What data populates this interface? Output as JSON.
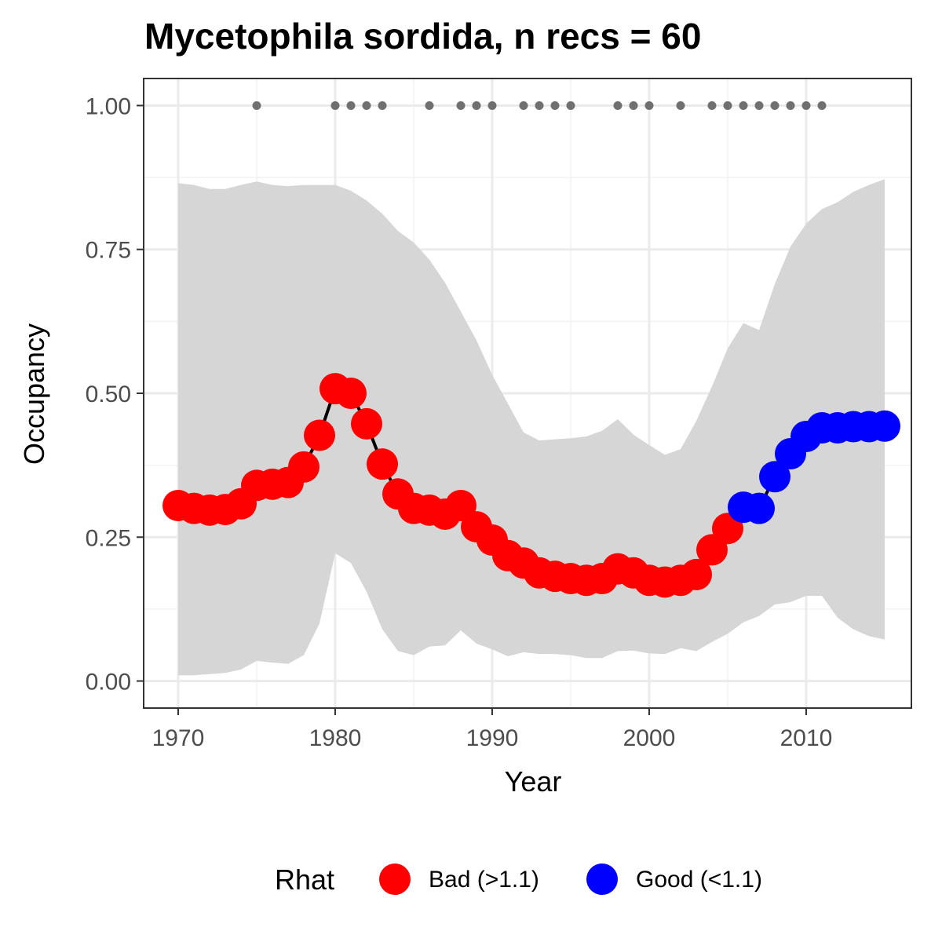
{
  "chart_data": {
    "type": "line",
    "title": "Mycetophila sordida, n recs = 60",
    "xlabel": "Year",
    "ylabel": "Occupancy",
    "xlim": [
      1967.8,
      2016.7
    ],
    "ylim": [
      -0.047,
      1.047
    ],
    "xticks": [
      1970,
      1980,
      1990,
      2000,
      2010
    ],
    "xtick_labels": [
      "1970",
      "1980",
      "1990",
      "2000",
      "2010"
    ],
    "yticks": [
      0,
      0.25,
      0.5,
      0.75,
      1.0
    ],
    "ytick_labels": [
      "0.00",
      "0.25",
      "0.50",
      "0.75",
      "1.00"
    ],
    "grid": true,
    "colors": {
      "bad": "#ff0000",
      "good": "#0000ff",
      "line": "#000000",
      "band": "#d6d6d6",
      "records": "#707070"
    },
    "legend": {
      "title": "Rhat",
      "placement": "bottom",
      "entries": [
        {
          "key": "bad",
          "label": "Bad (>1.1)"
        },
        {
          "key": "good",
          "label": "Good (<1.1)"
        }
      ]
    },
    "series": [
      {
        "name": "Occupancy",
        "x": [
          1970,
          1971,
          1972,
          1973,
          1974,
          1975,
          1976,
          1977,
          1978,
          1979,
          1980,
          1981,
          1982,
          1983,
          1984,
          1985,
          1986,
          1987,
          1988,
          1989,
          1990,
          1991,
          1992,
          1993,
          1994,
          1995,
          1996,
          1997,
          1998,
          1999,
          2000,
          2001,
          2002,
          2003,
          2004,
          2005,
          2006,
          2007,
          2008,
          2009,
          2010,
          2011,
          2012,
          2013,
          2014,
          2015
        ],
        "y": [
          0.305,
          0.3,
          0.297,
          0.298,
          0.308,
          0.34,
          0.342,
          0.345,
          0.372,
          0.427,
          0.508,
          0.5,
          0.447,
          0.377,
          0.325,
          0.3,
          0.297,
          0.29,
          0.305,
          0.268,
          0.245,
          0.218,
          0.205,
          0.188,
          0.182,
          0.178,
          0.175,
          0.178,
          0.195,
          0.188,
          0.175,
          0.172,
          0.175,
          0.185,
          0.228,
          0.265,
          0.302,
          0.3,
          0.355,
          0.395,
          0.425,
          0.44,
          0.44,
          0.442,
          0.442,
          0.443
        ],
        "rhat": [
          "bad",
          "bad",
          "bad",
          "bad",
          "bad",
          "bad",
          "bad",
          "bad",
          "bad",
          "bad",
          "bad",
          "bad",
          "bad",
          "bad",
          "bad",
          "bad",
          "bad",
          "bad",
          "bad",
          "bad",
          "bad",
          "bad",
          "bad",
          "bad",
          "bad",
          "bad",
          "bad",
          "bad",
          "bad",
          "bad",
          "bad",
          "bad",
          "bad",
          "bad",
          "bad",
          "bad",
          "good",
          "good",
          "good",
          "good",
          "good",
          "good",
          "good",
          "good",
          "good",
          "good"
        ],
        "lower": [
          0.01,
          0.01,
          0.012,
          0.014,
          0.02,
          0.035,
          0.032,
          0.03,
          0.045,
          0.1,
          0.222,
          0.205,
          0.155,
          0.09,
          0.052,
          0.045,
          0.06,
          0.062,
          0.088,
          0.065,
          0.055,
          0.043,
          0.05,
          0.047,
          0.047,
          0.045,
          0.04,
          0.04,
          0.052,
          0.053,
          0.048,
          0.047,
          0.057,
          0.052,
          0.068,
          0.082,
          0.102,
          0.113,
          0.133,
          0.137,
          0.148,
          0.148,
          0.11,
          0.09,
          0.078,
          0.072
        ],
        "upper": [
          0.865,
          0.862,
          0.855,
          0.855,
          0.862,
          0.868,
          0.862,
          0.86,
          0.862,
          0.862,
          0.862,
          0.852,
          0.835,
          0.812,
          0.782,
          0.762,
          0.732,
          0.692,
          0.642,
          0.592,
          0.532,
          0.482,
          0.432,
          0.418,
          0.42,
          0.422,
          0.425,
          0.435,
          0.455,
          0.428,
          0.41,
          0.393,
          0.403,
          0.452,
          0.512,
          0.578,
          0.622,
          0.61,
          0.69,
          0.755,
          0.795,
          0.82,
          0.832,
          0.85,
          0.862,
          0.872
        ]
      }
    ],
    "records": {
      "y": 1.0,
      "years": [
        1975,
        1980,
        1981,
        1982,
        1983,
        1986,
        1988,
        1989,
        1990,
        1992,
        1993,
        1994,
        1995,
        1998,
        1999,
        2000,
        2002,
        2004,
        2005,
        2006,
        2007,
        2008,
        2009,
        2010,
        2011
      ]
    }
  }
}
